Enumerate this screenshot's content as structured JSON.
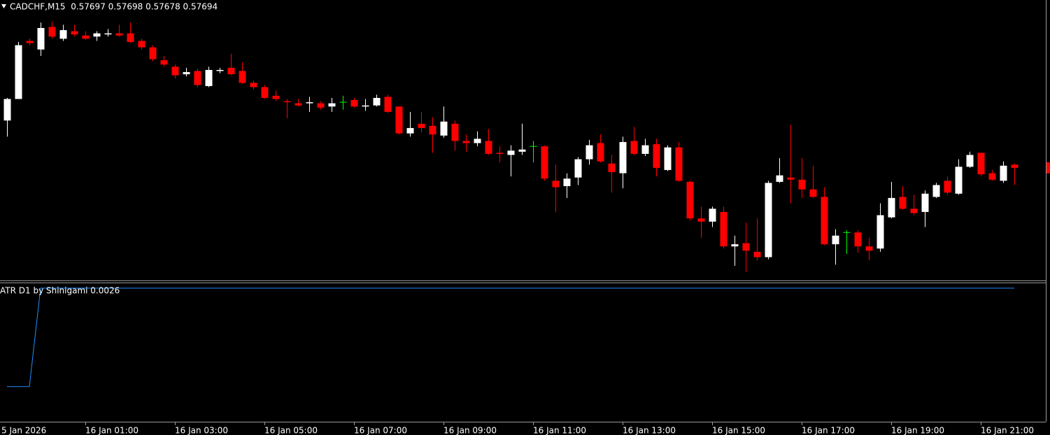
{
  "chart_data": [
    {
      "type": "candlestick",
      "title": "CADCHF,M15  0.57697 0.57698 0.57678 0.57694",
      "x_start_label": "5 Jan 2026",
      "categories": [
        null,
        null,
        null,
        null,
        null,
        null,
        null,
        "16 Jan 01:00",
        null,
        null,
        null,
        null,
        null,
        null,
        null,
        "16 Jan 03:00",
        null,
        null,
        null,
        null,
        null,
        null,
        null,
        "16 Jan 05:00",
        null,
        null,
        null,
        null,
        null,
        null,
        null,
        "16 Jan 07:00",
        null,
        null,
        null,
        null,
        null,
        null,
        null,
        "16 Jan 09:00",
        null,
        null,
        null,
        null,
        null,
        null,
        null,
        "16 Jan 11:00",
        null,
        null,
        null,
        null,
        null,
        null,
        null,
        "16 Jan 13:00",
        null,
        null,
        null,
        null,
        null,
        null,
        null,
        "16 Jan 15:00",
        null,
        null,
        null,
        null,
        null,
        null,
        null,
        "16 Jan 17:00",
        null,
        null,
        null,
        null,
        null,
        null,
        null,
        "16 Jan 19:00",
        null,
        null,
        null,
        null,
        null,
        null,
        null,
        "16 Jan 21:00",
        null,
        null,
        null
      ],
      "open": [
        0.57738,
        0.57758,
        0.57812,
        0.57804,
        0.57825,
        0.57814,
        0.57821,
        0.57817,
        0.57816,
        0.57818,
        0.57819,
        0.57819,
        0.57812,
        0.57806,
        0.57794,
        0.57788,
        0.57781,
        0.57784,
        0.5777,
        0.57784,
        0.57787,
        0.57784,
        0.57773,
        0.57769,
        0.57761,
        0.57756,
        0.57754,
        0.57754,
        0.57754,
        0.57751,
        0.57755,
        0.57757,
        0.57751,
        0.57752,
        0.5776,
        0.57751,
        0.57726,
        0.57735,
        0.57733,
        0.57724,
        0.57735,
        0.57719,
        0.57717,
        0.57719,
        0.57708,
        0.57706,
        0.57709,
        0.57714,
        0.57714,
        0.57682,
        0.57677,
        0.57685,
        0.57702,
        0.57717,
        0.57698,
        0.57689,
        0.57719,
        0.57707,
        0.57716,
        0.57692,
        0.57713,
        0.57681,
        0.57647,
        0.57644,
        0.57653,
        0.57621,
        0.57624,
        0.57616,
        0.57611,
        0.57681,
        0.57685,
        0.57683,
        0.57674,
        0.57667,
        0.57623,
        0.57634,
        0.57634,
        0.57621,
        0.57619,
        0.57648,
        0.57667,
        0.57656,
        0.57653,
        0.57667,
        0.57682,
        0.5767,
        0.57695,
        0.57708,
        0.57689,
        0.57682,
        0.57697
      ],
      "high": [
        0.57759,
        0.57811,
        0.57814,
        0.57829,
        0.5783,
        0.57827,
        0.57827,
        0.57821,
        0.57821,
        0.57823,
        0.57827,
        0.57829,
        0.57814,
        0.57808,
        0.57798,
        0.5779,
        0.57787,
        0.57786,
        0.57788,
        0.57787,
        0.578,
        0.57792,
        0.57775,
        0.57771,
        0.57766,
        0.57758,
        0.57758,
        0.5776,
        0.57756,
        0.57759,
        0.57761,
        0.57759,
        0.57758,
        0.57762,
        0.57762,
        0.57751,
        0.57746,
        0.57746,
        0.57741,
        0.57751,
        0.57738,
        0.57725,
        0.57728,
        0.5773,
        0.57714,
        0.57715,
        0.57735,
        0.57719,
        0.57715,
        0.57697,
        0.57689,
        0.57704,
        0.5772,
        0.57725,
        0.57706,
        0.57723,
        0.57732,
        0.57721,
        0.57721,
        0.57715,
        0.57718,
        0.57682,
        0.57658,
        0.57658,
        0.57658,
        0.57631,
        0.57643,
        0.57647,
        0.57682,
        0.57703,
        0.57734,
        0.57703,
        0.57696,
        0.57676,
        0.57637,
        0.57636,
        0.57636,
        0.57629,
        0.57661,
        0.57681,
        0.57677,
        0.57669,
        0.57673,
        0.5768,
        0.57686,
        0.57702,
        0.57709,
        0.57708,
        0.57692,
        0.577,
        0.57698
      ],
      "low": [
        0.57723,
        0.57758,
        0.57808,
        0.57798,
        0.57814,
        0.57812,
        0.57816,
        0.57813,
        0.57812,
        0.57816,
        0.57816,
        0.5781,
        0.57804,
        0.57793,
        0.57788,
        0.57777,
        0.57779,
        0.57769,
        0.57769,
        0.57782,
        0.5778,
        0.57772,
        0.57767,
        0.57758,
        0.57756,
        0.5774,
        0.57751,
        0.57746,
        0.57748,
        0.57746,
        0.57748,
        0.5775,
        0.57747,
        0.57751,
        0.57745,
        0.57725,
        0.57723,
        0.57727,
        0.57708,
        0.57722,
        0.5771,
        0.57709,
        0.57714,
        0.57706,
        0.57699,
        0.57686,
        0.57706,
        0.57699,
        0.57682,
        0.57653,
        0.57666,
        0.57678,
        0.57697,
        0.57699,
        0.57671,
        0.57675,
        0.57706,
        0.57705,
        0.57686,
        0.57691,
        0.57681,
        0.57645,
        0.57629,
        0.57639,
        0.57619,
        0.57603,
        0.57597,
        0.57608,
        0.57609,
        0.5768,
        0.57661,
        0.57666,
        0.57666,
        0.57622,
        0.57604,
        0.57614,
        0.57615,
        0.57608,
        0.57616,
        0.57647,
        0.57655,
        0.5765,
        0.57639,
        0.57666,
        0.57669,
        0.57669,
        0.57694,
        0.57686,
        0.57682,
        0.5768,
        0.57678
      ],
      "close": [
        0.57758,
        0.57808,
        0.5781,
        0.57824,
        0.57816,
        0.57822,
        0.57818,
        0.57814,
        0.57819,
        0.57819,
        0.57817,
        0.57811,
        0.57806,
        0.57795,
        0.5779,
        0.5778,
        0.57783,
        0.57771,
        0.57785,
        0.57785,
        0.57781,
        0.57773,
        0.57769,
        0.57759,
        0.57758,
        0.57755,
        0.57752,
        0.57755,
        0.5775,
        0.57754,
        0.57755,
        0.57751,
        0.57752,
        0.57759,
        0.57746,
        0.57726,
        0.57731,
        0.57731,
        0.57725,
        0.57737,
        0.57719,
        0.57717,
        0.57721,
        0.57707,
        0.57707,
        0.5771,
        0.57711,
        0.57714,
        0.57684,
        0.57676,
        0.57684,
        0.57702,
        0.57715,
        0.577,
        0.5769,
        0.57718,
        0.57707,
        0.57715,
        0.57694,
        0.57713,
        0.57682,
        0.57647,
        0.57644,
        0.57656,
        0.57621,
        0.57623,
        0.57617,
        0.57611,
        0.5768,
        0.57687,
        0.57683,
        0.57674,
        0.57667,
        0.57623,
        0.57631,
        0.57634,
        0.57621,
        0.57617,
        0.5765,
        0.57666,
        0.57656,
        0.57652,
        0.5767,
        0.57678,
        0.57671,
        0.57695,
        0.57706,
        0.57688,
        0.57683,
        0.57696,
        0.57694
      ],
      "up_color": "#ffffff",
      "down_color": "#ff0000",
      "doji_color": "#00ff00",
      "ylim": [
        0.5759,
        0.5785
      ]
    },
    {
      "type": "line",
      "title": "ATR D1 by Shinigami 0.0026",
      "series": [
        {
          "color": "#1e90ff",
          "values": [
            0.0019,
            0.0019,
            0.0019,
            0.0026,
            0.0026,
            0.0026,
            0.0026,
            0.0026,
            0.0026,
            0.0026,
            0.0026,
            0.0026,
            0.0026,
            0.0026,
            0.0026,
            0.0026,
            0.0026,
            0.0026,
            0.0026,
            0.0026,
            0.0026,
            0.0026,
            0.0026,
            0.0026,
            0.0026,
            0.0026,
            0.0026,
            0.0026,
            0.0026,
            0.0026,
            0.0026,
            0.0026,
            0.0026,
            0.0026,
            0.0026,
            0.0026,
            0.0026,
            0.0026,
            0.0026,
            0.0026,
            0.0026,
            0.0026,
            0.0026,
            0.0026,
            0.0026,
            0.0026,
            0.0026,
            0.0026,
            0.0026,
            0.0026,
            0.0026,
            0.0026,
            0.0026,
            0.0026,
            0.0026,
            0.0026,
            0.0026,
            0.0026,
            0.0026,
            0.0026,
            0.0026,
            0.0026,
            0.0026,
            0.0026,
            0.0026,
            0.0026,
            0.0026,
            0.0026,
            0.0026,
            0.0026,
            0.0026,
            0.0026,
            0.0026,
            0.0026,
            0.0026,
            0.0026,
            0.0026,
            0.0026,
            0.0026,
            0.0026,
            0.0026,
            0.0026,
            0.0026,
            0.0026,
            0.0026,
            0.0026,
            0.0026,
            0.0026,
            0.0026,
            0.0026,
            0.0026
          ]
        }
      ],
      "ylim": [
        0.00165,
        0.00264
      ]
    }
  ]
}
